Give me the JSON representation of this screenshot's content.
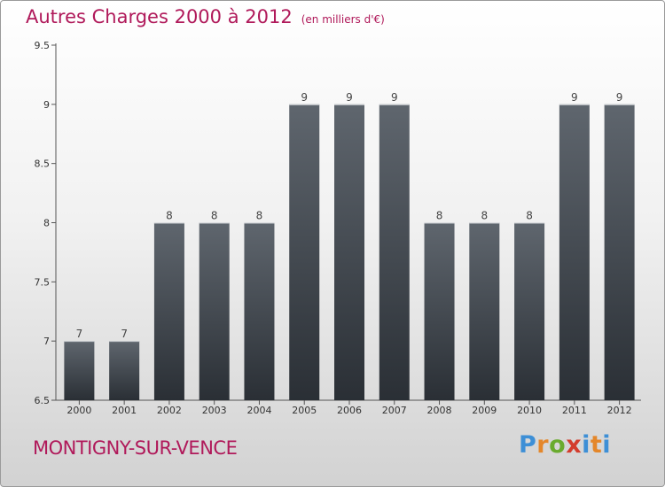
{
  "header": {
    "title": "Autres Charges 2000 à 2012",
    "subtitle": "(en milliers d'€)"
  },
  "footer": {
    "city": "MONTIGNY-SUR-VENCE",
    "logo_letters": [
      "P",
      "r",
      "o",
      "x",
      "i",
      "t",
      "i"
    ]
  },
  "colors": {
    "title": "#b0195a",
    "bar_top": "#5f666e",
    "bar_bottom": "#2a2f35"
  },
  "chart_data": {
    "type": "bar",
    "title": "Autres Charges 2000 à 2012",
    "subtitle": "(en milliers d'€)",
    "categories": [
      "2000",
      "2001",
      "2002",
      "2003",
      "2004",
      "2005",
      "2006",
      "2007",
      "2008",
      "2009",
      "2010",
      "2011",
      "2012"
    ],
    "values": [
      7,
      7,
      8,
      8,
      8,
      9,
      9,
      9,
      8,
      8,
      8,
      9,
      9
    ],
    "ylim": [
      6.5,
      9.5
    ],
    "yticks": [
      "6.5",
      "7",
      "7.5",
      "8",
      "8.5",
      "9",
      "9.5"
    ],
    "ytick_values": [
      6.5,
      7,
      7.5,
      8,
      8.5,
      9,
      9.5
    ],
    "xlabel": "",
    "ylabel": "",
    "grid": false,
    "legend": "none"
  }
}
